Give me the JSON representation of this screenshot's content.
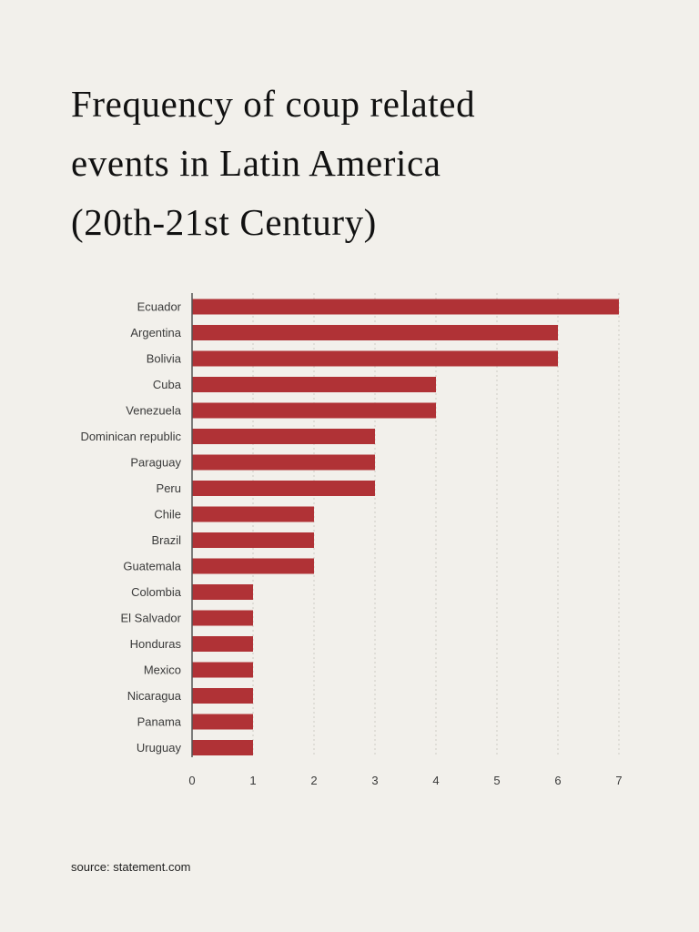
{
  "title_lines": [
    "Frequency of coup related",
    "events in Latin America",
    "(20th-21st Century)"
  ],
  "source": "source: statement.com",
  "colors": {
    "background": "#f2f0eb",
    "bar": "#b03236",
    "grid": "#cfccc5",
    "axis": "#555555"
  },
  "chart_data": {
    "type": "bar",
    "orientation": "horizontal",
    "title": "Frequency of coup related events in Latin America (20th-21st Century)",
    "categories": [
      "Ecuador",
      "Argentina",
      "Bolivia",
      "Cuba",
      "Venezuela",
      "Dominican republic",
      "Paraguay",
      "Peru",
      "Chile",
      "Brazil",
      "Guatemala",
      "Colombia",
      "El Salvador",
      "Honduras",
      "Mexico",
      "Nicaragua",
      "Panama",
      "Uruguay"
    ],
    "values": [
      7,
      6,
      6,
      4,
      4,
      3,
      3,
      3,
      2,
      2,
      2,
      1,
      1,
      1,
      1,
      1,
      1,
      1
    ],
    "xlim": [
      0,
      7
    ],
    "xticks": [
      0,
      1,
      2,
      3,
      4,
      5,
      6,
      7
    ],
    "xlabel": "",
    "ylabel": "",
    "grid": "vertical dotted"
  }
}
